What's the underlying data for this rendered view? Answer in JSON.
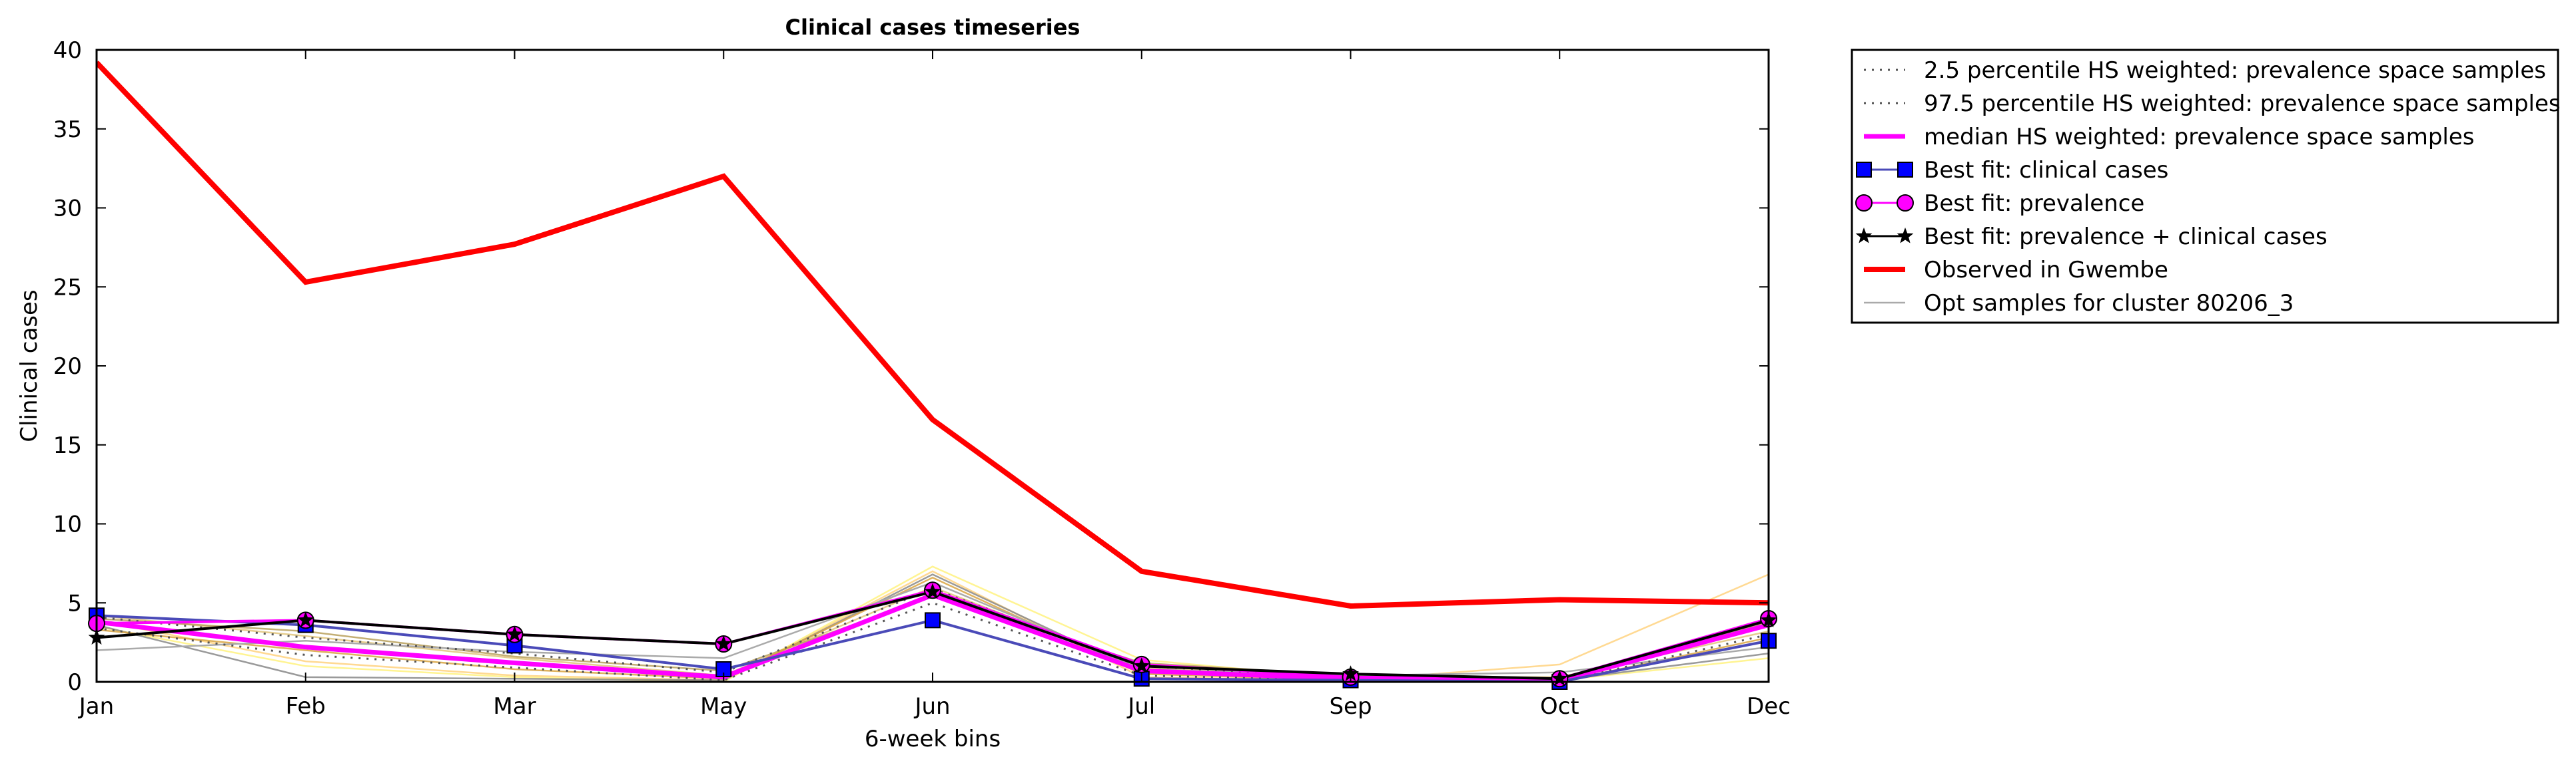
{
  "chart_data": {
    "type": "line",
    "title": "Clinical cases timeseries",
    "xlabel": "6-week bins",
    "ylabel": "Clinical cases",
    "categories": [
      "Jan",
      "Feb",
      "Mar",
      "May",
      "Jun",
      "Jul",
      "Sep",
      "Oct",
      "Dec"
    ],
    "ylim": [
      0,
      40
    ],
    "yticks": [
      0,
      5,
      10,
      15,
      20,
      25,
      30,
      35,
      40
    ],
    "grid": false,
    "legend_position": "outside-top-right",
    "series": [
      {
        "name": "2.5 percentile HS weighted: prevalence space samples",
        "style": "dotted",
        "color": "#555555",
        "values": [
          3.4,
          1.7,
          0.9,
          0.1,
          5.0,
          0.4,
          0.1,
          0.0,
          3.0
        ]
      },
      {
        "name": "97.5 percentile HS weighted: prevalence space samples",
        "style": "dotted",
        "color": "#555555",
        "values": [
          4.1,
          2.8,
          1.8,
          0.6,
          5.9,
          1.0,
          0.3,
          0.2,
          4.0
        ]
      },
      {
        "name": "median HS weighted: prevalence space samples",
        "style": "solid",
        "color": "#ff00ff",
        "values": [
          3.8,
          2.2,
          1.2,
          0.3,
          5.5,
          0.7,
          0.2,
          0.1,
          3.6
        ]
      },
      {
        "name": "Best fit: clinical cases",
        "style": "square-marker",
        "color": "#4a4ab8",
        "values": [
          4.2,
          3.6,
          2.3,
          0.8,
          3.9,
          0.2,
          0.1,
          0.0,
          2.6
        ]
      },
      {
        "name": "Best fit: prevalence",
        "style": "circle-marker",
        "color": "#ff00ff",
        "values": [
          3.7,
          3.9,
          3.0,
          2.4,
          5.8,
          1.1,
          0.3,
          0.2,
          4.0
        ]
      },
      {
        "name": "Best fit: prevalence + clinical cases",
        "style": "star-marker",
        "color": "#000000",
        "values": [
          2.8,
          3.9,
          3.0,
          2.4,
          5.7,
          1.0,
          0.5,
          0.2,
          3.9
        ]
      },
      {
        "name": "Observed in Gwembe",
        "style": "thick",
        "color": "#ff0000",
        "values": [
          39.2,
          25.3,
          27.7,
          32.0,
          16.6,
          7.0,
          4.8,
          5.2,
          5.0
        ]
      },
      {
        "name": "Opt samples for cluster 80206_3",
        "style": "thin",
        "color": "#aaaaaa",
        "values": [
          2.0,
          2.6,
          1.9,
          1.5,
          6.3,
          0.8,
          0.4,
          0.6,
          2.2
        ]
      }
    ],
    "extra_samples": [
      {
        "color": "#ffd27f",
        "values": [
          3.9,
          1.3,
          0.4,
          0.1,
          7.0,
          0.3,
          0.1,
          1.1,
          6.8
        ]
      },
      {
        "color": "#fff27f",
        "values": [
          3.5,
          1.0,
          0.3,
          0.0,
          7.3,
          1.4,
          0.2,
          0.1,
          1.5
        ]
      },
      {
        "color": "#e0c47a",
        "values": [
          4.2,
          2.9,
          1.5,
          0.4,
          6.0,
          0.9,
          0.3,
          0.3,
          3.2
        ]
      },
      {
        "color": "#888888",
        "values": [
          3.6,
          0.3,
          0.2,
          0.1,
          6.8,
          0.6,
          0.2,
          0.1,
          1.8
        ]
      },
      {
        "color": "#b8a05a",
        "values": [
          4.0,
          3.2,
          1.6,
          0.7,
          5.4,
          1.2,
          0.4,
          0.2,
          3.8
        ]
      },
      {
        "color": "#d9a441",
        "values": [
          3.3,
          2.0,
          0.8,
          0.2,
          6.6,
          0.5,
          0.1,
          0.0,
          2.8
        ]
      }
    ]
  }
}
